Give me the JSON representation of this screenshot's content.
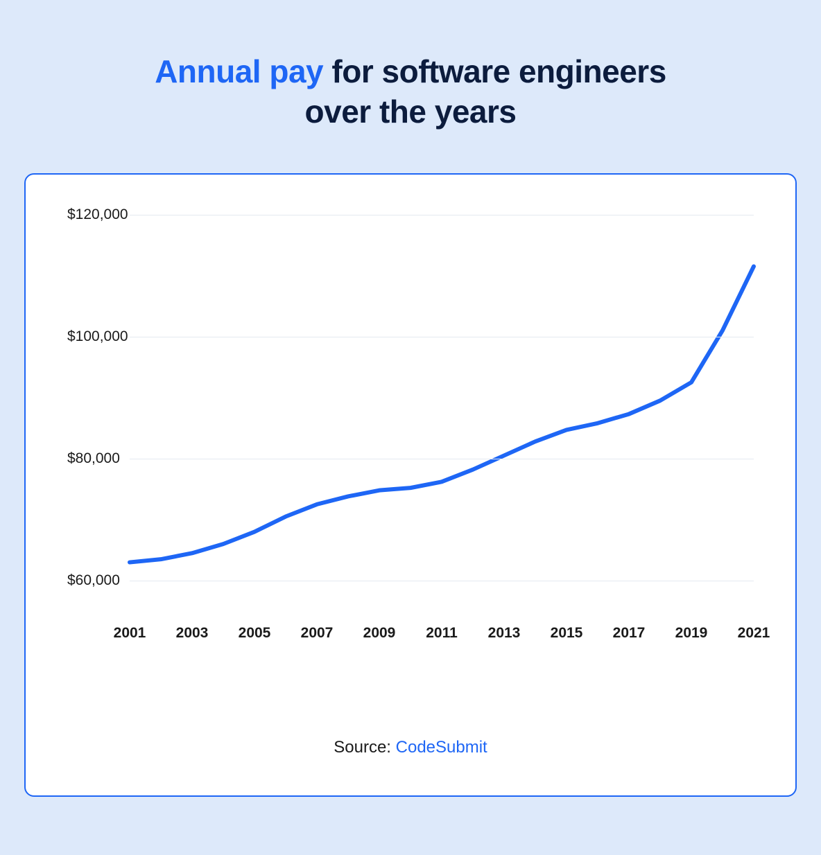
{
  "title": {
    "accent": "Annual pay",
    "rest_line1": " for software engineers",
    "line2": "over the years",
    "accent_color": "#1e66f5",
    "text_color": "#0c1c3d",
    "fontsize": 46,
    "fontweight": 800
  },
  "page": {
    "background_color": "#dde9fa"
  },
  "card": {
    "background_color": "#ffffff",
    "border_color": "#1e66f5",
    "border_width": 2,
    "border_radius": 14
  },
  "chart": {
    "type": "line",
    "line_color": "#1e66f5",
    "line_width": 6,
    "grid_color": "#e4e9f0",
    "ylim": [
      55000,
      122000
    ],
    "ytick_values": [
      60000,
      80000,
      100000,
      120000
    ],
    "ytick_labels": [
      "$60,000",
      "$80,000",
      "$100,000",
      "$120,000"
    ],
    "ylabel_fontsize": 21,
    "xlim": [
      2001,
      2021
    ],
    "xtick_values": [
      2001,
      2003,
      2005,
      2007,
      2009,
      2011,
      2013,
      2015,
      2017,
      2019,
      2021
    ],
    "xtick_labels": [
      "2001",
      "2003",
      "2005",
      "2007",
      "2009",
      "2011",
      "2013",
      "2015",
      "2017",
      "2019",
      "2021"
    ],
    "xlabel_fontsize": 21,
    "xlabel_fontweight": 700,
    "data": {
      "x": [
        2001,
        2002,
        2003,
        2004,
        2005,
        2006,
        2007,
        2008,
        2009,
        2010,
        2011,
        2012,
        2013,
        2014,
        2015,
        2016,
        2017,
        2018,
        2019,
        2020,
        2021
      ],
      "y": [
        63000,
        63500,
        64500,
        66000,
        68000,
        70500,
        72500,
        73800,
        74800,
        75200,
        76200,
        78200,
        80500,
        82800,
        84700,
        85800,
        87300,
        89500,
        92500,
        101000,
        111500
      ]
    }
  },
  "source": {
    "prefix": "Source: ",
    "link_text": "CodeSubmit",
    "fontsize": 24,
    "link_color": "#1e66f5"
  }
}
